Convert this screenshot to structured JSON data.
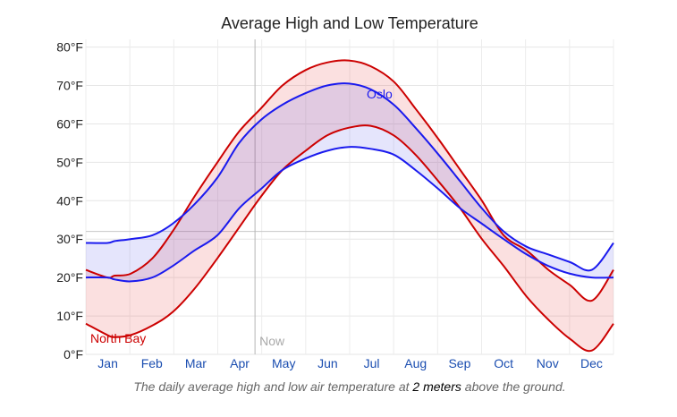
{
  "chart_data": {
    "type": "area",
    "title": "Average High and Low Temperature",
    "caption": {
      "pre": "The daily average high and low air temperature at ",
      "emphasis": "2 meters",
      "post": " above the ground."
    },
    "y_unit": "°F",
    "ylim": [
      0,
      82
    ],
    "yticks": [
      "80°F",
      "70°F",
      "60°F",
      "50°F",
      "40°F",
      "30°F",
      "20°F",
      "10°F",
      "0°F"
    ],
    "ytick_values": [
      80,
      70,
      60,
      50,
      40,
      30,
      20,
      10,
      0
    ],
    "months": [
      "Jan",
      "Feb",
      "Mar",
      "Apr",
      "May",
      "Jun",
      "Jul",
      "Aug",
      "Sep",
      "Oct",
      "Nov",
      "Dec"
    ],
    "grid": true,
    "now_marker": {
      "label": "Now",
      "day": 117
    },
    "reference_line_y": 32,
    "x_days": [
      0,
      15,
      20,
      31,
      46,
      60,
      75,
      91,
      106,
      121,
      136,
      152,
      167,
      182,
      197,
      213,
      228,
      244,
      259,
      274,
      289,
      305,
      320,
      335,
      350,
      365
    ],
    "series": [
      {
        "name": "North Bay",
        "label_position": "lower-left",
        "color": "#cc0000",
        "fill": "rgba(230,60,60,0.16)",
        "high": [
          22,
          20,
          20.5,
          21,
          25,
          32,
          41,
          50,
          58,
          64,
          70,
          74,
          76,
          76.5,
          75,
          71,
          64,
          56,
          48,
          40,
          31,
          27,
          22,
          18,
          14,
          22
        ],
        "low": [
          8,
          5,
          4.5,
          5,
          7.5,
          11,
          17,
          25,
          33,
          41,
          48,
          53,
          57,
          59,
          59.5,
          57,
          52,
          45,
          38,
          30,
          23,
          15,
          9,
          4,
          1,
          8
        ]
      },
      {
        "name": "Oslo",
        "label_position": "near-peak",
        "color": "#1a1aee",
        "fill": "rgba(80,80,235,0.15)",
        "high": [
          29,
          29,
          29.5,
          30,
          31,
          34,
          39,
          46,
          55,
          61,
          65,
          68,
          70,
          70.5,
          69,
          65,
          59,
          52,
          45,
          38,
          32,
          28,
          26,
          24,
          22,
          29
        ],
        "low": [
          20,
          20,
          19.5,
          19,
          20,
          23,
          27,
          31,
          38,
          43,
          48,
          51,
          53,
          54,
          53.5,
          52,
          48,
          43,
          38,
          34,
          30,
          26,
          23,
          21,
          20,
          20
        ]
      }
    ]
  }
}
